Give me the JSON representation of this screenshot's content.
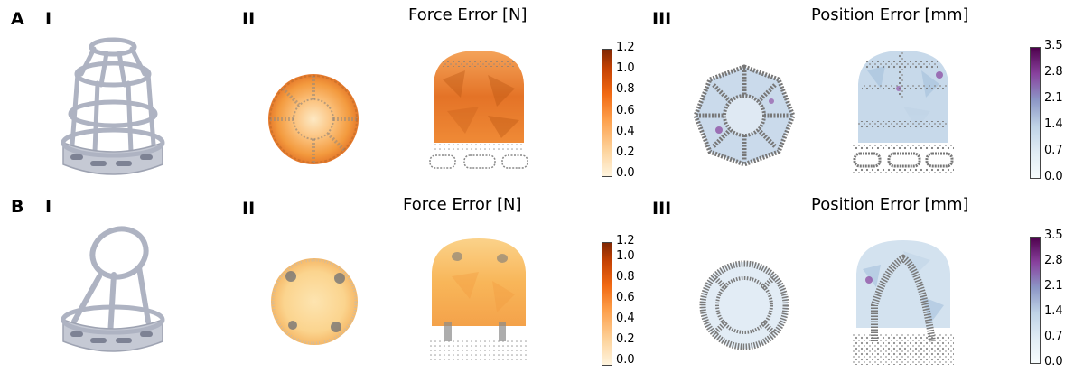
{
  "rows": [
    {
      "letter": "A",
      "parts": [
        "I",
        "II",
        "III"
      ],
      "force_title": "Force Error [N]",
      "position_title": "Position Error [mm]"
    },
    {
      "letter": "B",
      "parts": [
        "I",
        "II",
        "III"
      ],
      "force_title": "Force Error [N]",
      "position_title": "Position Error [mm]"
    }
  ],
  "force_colorbar": {
    "ticks": [
      "1.2",
      "1.0",
      "0.8",
      "0.6",
      "0.4",
      "0.2",
      "0.0"
    ],
    "colors": [
      "#7f2704",
      "#c44103",
      "#f16913",
      "#fd9f4b",
      "#fdd49e",
      "#fff5e0"
    ]
  },
  "position_colorbar": {
    "ticks": [
      "3.5",
      "2.8",
      "2.1",
      "1.4",
      "0.7",
      "0.0"
    ],
    "colors": [
      "#4d004b",
      "#88419d",
      "#8c96c6",
      "#9ebcda",
      "#e0ecf4",
      "#f7fcfd"
    ]
  },
  "colors": {
    "part_gray": "#b8bcc8",
    "point_gray": "#7a7a7a"
  }
}
